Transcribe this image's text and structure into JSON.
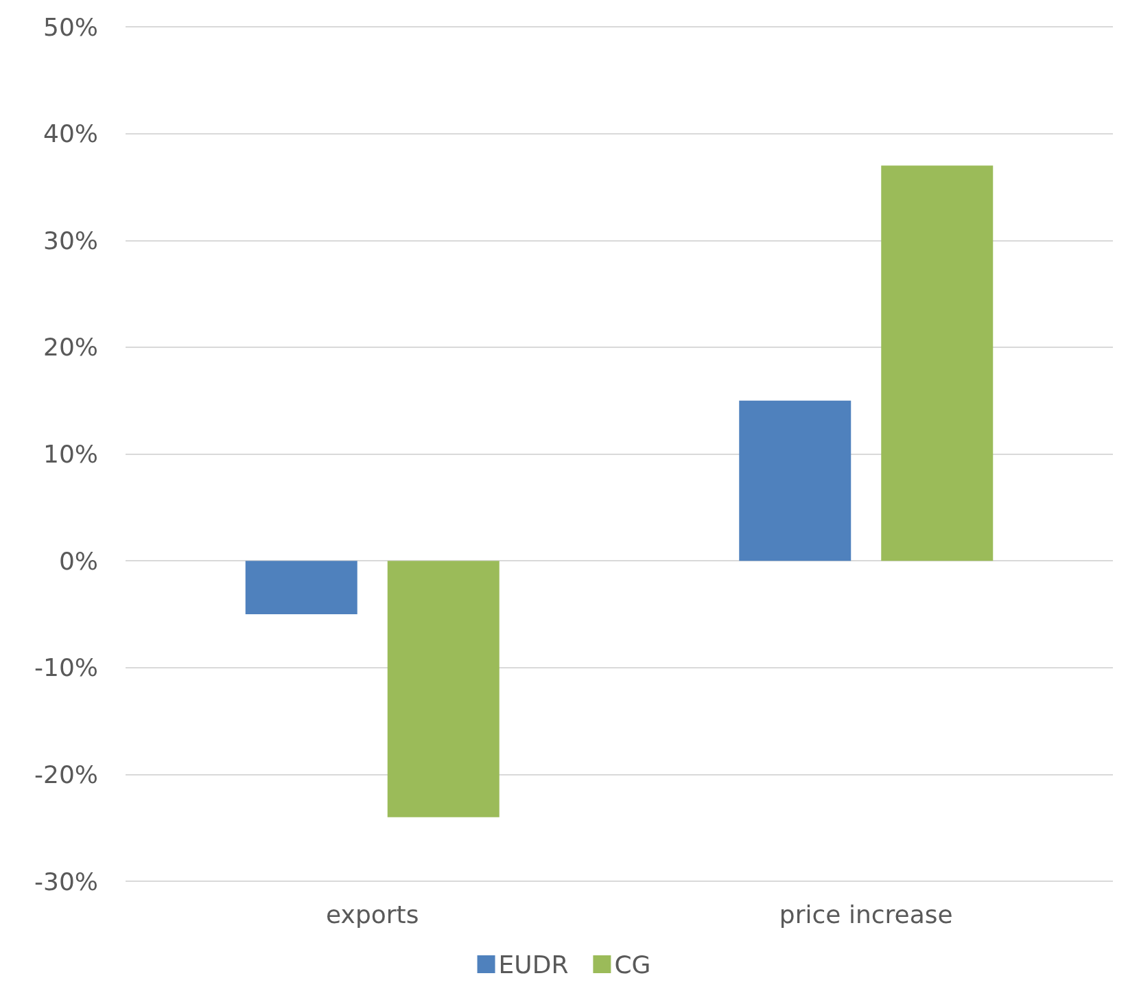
{
  "chart_data": {
    "type": "bar",
    "categories": [
      "exports",
      "price increase"
    ],
    "series": [
      {
        "name": "EUDR",
        "color": "#4f81bd",
        "values": [
          -5,
          15
        ]
      },
      {
        "name": "CG",
        "color": "#9bbb59",
        "values": [
          -24,
          37
        ]
      }
    ],
    "ylim": [
      -30,
      50
    ],
    "yticks": [
      {
        "value": -30,
        "label": "-30%"
      },
      {
        "value": -20,
        "label": "-20%"
      },
      {
        "value": -10,
        "label": "-10%"
      },
      {
        "value": 0,
        "label": "0%"
      },
      {
        "value": 10,
        "label": "10%"
      },
      {
        "value": 20,
        "label": "20%"
      },
      {
        "value": 30,
        "label": "30%"
      },
      {
        "value": 40,
        "label": "40%"
      },
      {
        "value": 50,
        "label": "50%"
      }
    ],
    "grid": "y",
    "legend": "bottom"
  }
}
